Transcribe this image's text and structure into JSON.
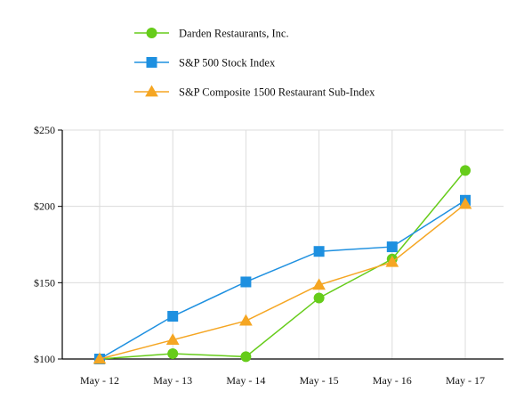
{
  "chart_data": {
    "type": "line",
    "title": "",
    "xlabel": "",
    "ylabel": "",
    "categories": [
      "May - 12",
      "May - 13",
      "May - 14",
      "May - 15",
      "May - 16",
      "May - 17"
    ],
    "y_ticks": [
      "$100",
      "$150",
      "$200",
      "$250"
    ],
    "y_tick_values": [
      100,
      150,
      200,
      250
    ],
    "ylim": [
      100,
      250
    ],
    "grid": true,
    "legend_position": "top-left",
    "series": [
      {
        "name": "Darden Restaurants, Inc.",
        "values": [
          100,
          103.5,
          101.5,
          140,
          165.5,
          223.5
        ],
        "color": "#66cc1a",
        "marker": "circle"
      },
      {
        "name": "S&P 500 Stock Index",
        "values": [
          100,
          128,
          150.5,
          170.5,
          173.5,
          204
        ],
        "color": "#1e90e0",
        "marker": "square"
      },
      {
        "name": "S&P Composite 1500 Restaurant Sub-Index",
        "values": [
          100,
          112.5,
          125,
          148.5,
          163.5,
          201.5
        ],
        "color": "#f5a623",
        "marker": "triangle"
      }
    ]
  }
}
